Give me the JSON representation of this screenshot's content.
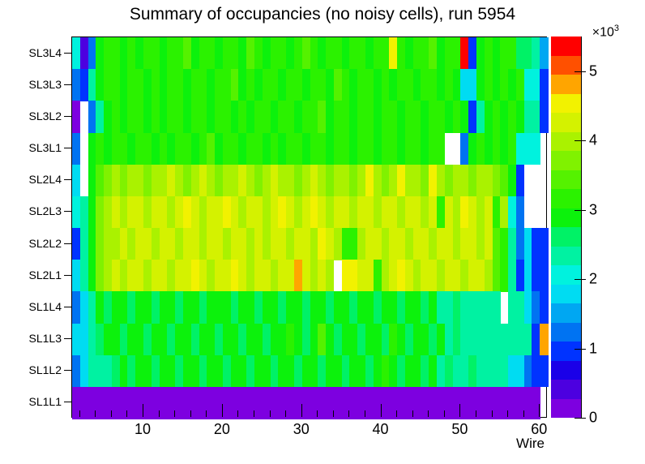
{
  "title": "Summary of occupancies (no noisy cells), run 5954",
  "x_axis": {
    "label": "Wire",
    "range": [
      1,
      61
    ],
    "major_ticks": [
      10,
      20,
      30,
      40,
      50,
      60
    ],
    "minor_tick_step": 2
  },
  "y_axis": {
    "labels_top_to_bottom": [
      "SL3L4",
      "SL3L3",
      "SL3L2",
      "SL3L1",
      "SL2L4",
      "SL2L3",
      "SL2L2",
      "SL2L1",
      "SL1L4",
      "SL1L3",
      "SL1L2",
      "SL1L1"
    ]
  },
  "color_scale": {
    "ticks": [
      0,
      1,
      2,
      3,
      4,
      5
    ],
    "exponent_label": {
      "mantissa": "×10",
      "exponent": "3"
    },
    "min_value": 0,
    "max_value": 5.5,
    "units": "×10³ hits",
    "palette_bottom_to_top": [
      "#7d00e0",
      "#4c00e0",
      "#1a00e8",
      "#0033ff",
      "#0073f2",
      "#00a7f2",
      "#00dcf2",
      "#00f2de",
      "#00f2a2",
      "#00f266",
      "#0cf20c",
      "#2bf200",
      "#55f200",
      "#80f200",
      "#aaf200",
      "#d4f200",
      "#f2f200",
      "#ffa500",
      "#ff5000",
      "#ff0000"
    ]
  },
  "chart_data": {
    "type": "heatmap",
    "title": "Summary of occupancies (no noisy cells), run 5954",
    "x_label": "Wire",
    "wires": 60,
    "value_units": "×10³",
    "zmin": 0,
    "zmax": 5.5,
    "empty_cells_rendered": "white",
    "rows_top_to_bottom": [
      {
        "label": "SL3L4",
        "values": [
          2.0,
          0.4,
          1.2,
          2.9,
          3.2,
          3.2,
          2.9,
          3.2,
          2.9,
          3.2,
          3.2,
          2.9,
          3.2,
          3.2,
          3.4,
          2.9,
          3.2,
          3.2,
          2.9,
          3.2,
          3.2,
          2.9,
          3.4,
          3.2,
          2.9,
          3.2,
          3.2,
          2.9,
          3.2,
          3.4,
          3.2,
          2.9,
          3.2,
          3.2,
          2.9,
          3.2,
          3.2,
          2.9,
          3.2,
          3.2,
          4.4,
          3.2,
          2.9,
          3.2,
          3.2,
          3.4,
          2.9,
          3.2,
          3.2,
          5.4,
          0.9,
          2.9,
          3.2,
          2.9,
          3.2,
          3.2,
          2.6,
          2.6,
          2.4,
          1.5
        ]
      },
      {
        "label": "SL3L3",
        "values": [
          1.2,
          0.9,
          2.4,
          2.9,
          3.2,
          3.2,
          2.9,
          3.2,
          3.2,
          2.9,
          3.2,
          2.9,
          3.2,
          3.2,
          2.9,
          3.2,
          3.2,
          2.9,
          3.2,
          3.2,
          3.4,
          2.9,
          3.2,
          2.9,
          3.2,
          3.2,
          2.9,
          3.2,
          3.2,
          2.9,
          3.2,
          3.2,
          2.9,
          3.4,
          3.2,
          2.9,
          3.2,
          3.2,
          2.9,
          3.2,
          2.9,
          3.2,
          3.2,
          2.9,
          3.2,
          3.2,
          2.9,
          3.2,
          2.9,
          1.8,
          1.8,
          2.9,
          3.2,
          2.9,
          3.2,
          2.9,
          3.2,
          2.0,
          2.0,
          0.9
        ]
      },
      {
        "label": "SL3L2",
        "values": [
          0.15,
          null,
          1.3,
          2.4,
          2.9,
          3.2,
          2.9,
          3.2,
          3.2,
          2.9,
          3.2,
          2.9,
          3.2,
          3.2,
          2.9,
          3.2,
          3.2,
          2.9,
          3.2,
          3.2,
          2.9,
          3.2,
          2.9,
          3.2,
          3.2,
          2.9,
          3.2,
          3.2,
          2.9,
          3.2,
          3.2,
          3.4,
          2.9,
          3.2,
          3.2,
          2.9,
          3.2,
          3.2,
          2.9,
          3.2,
          3.2,
          2.9,
          3.2,
          3.2,
          2.9,
          3.2,
          3.2,
          2.9,
          3.2,
          2.9,
          0.9,
          2.2,
          2.9,
          3.2,
          2.9,
          3.2,
          2.9,
          2.4,
          2.4,
          0.9
        ]
      },
      {
        "label": "SL3L1",
        "values": [
          1.2,
          null,
          2.9,
          3.2,
          2.9,
          3.2,
          3.2,
          2.9,
          3.2,
          3.2,
          2.9,
          3.2,
          2.9,
          3.2,
          3.2,
          2.9,
          3.2,
          3.4,
          2.9,
          3.2,
          3.2,
          2.9,
          3.2,
          3.2,
          2.9,
          3.2,
          2.9,
          3.2,
          3.2,
          2.9,
          3.2,
          3.2,
          2.9,
          3.2,
          3.2,
          2.9,
          3.2,
          3.2,
          2.9,
          3.2,
          3.2,
          2.9,
          3.2,
          3.2,
          2.9,
          3.2,
          3.2,
          null,
          null,
          1.2,
          2.9,
          3.2,
          2.9,
          3.2,
          2.9,
          3.2,
          2.0,
          2.0,
          2.0,
          null
        ]
      },
      {
        "label": "SL2L4",
        "values": [
          1.8,
          null,
          2.9,
          3.4,
          3.7,
          4.0,
          3.7,
          4.0,
          4.0,
          3.7,
          4.0,
          4.0,
          4.2,
          4.0,
          3.7,
          4.0,
          4.2,
          4.0,
          3.7,
          4.0,
          4.0,
          4.2,
          4.0,
          3.7,
          4.0,
          4.2,
          4.0,
          4.0,
          3.7,
          4.0,
          4.2,
          4.0,
          3.7,
          4.0,
          4.0,
          3.7,
          4.0,
          4.4,
          4.0,
          3.7,
          4.0,
          4.4,
          4.0,
          4.0,
          3.7,
          4.4,
          4.0,
          3.7,
          4.0,
          4.0,
          3.7,
          4.0,
          4.0,
          3.7,
          3.4,
          2.9,
          0.9,
          null,
          null,
          null
        ]
      },
      {
        "label": "SL2L3",
        "values": [
          2.1,
          2.4,
          3.0,
          3.7,
          4.0,
          4.2,
          4.0,
          4.2,
          4.2,
          4.0,
          4.2,
          4.2,
          4.0,
          4.2,
          4.4,
          4.2,
          4.0,
          4.2,
          4.2,
          4.4,
          4.2,
          4.0,
          4.2,
          4.2,
          4.0,
          4.2,
          4.4,
          4.2,
          4.0,
          4.2,
          4.4,
          4.2,
          4.0,
          4.2,
          4.2,
          4.0,
          4.2,
          4.2,
          4.0,
          4.2,
          4.2,
          4.0,
          4.2,
          4.2,
          4.0,
          4.2,
          3.2,
          4.2,
          4.0,
          4.4,
          4.2,
          4.0,
          4.2,
          3.2,
          4.0,
          2.1,
          1.3,
          null,
          null,
          null
        ]
      },
      {
        "label": "SL2L2",
        "values": [
          0.9,
          2.2,
          3.0,
          3.7,
          4.0,
          4.0,
          4.2,
          4.0,
          4.2,
          4.2,
          4.0,
          4.2,
          4.2,
          4.0,
          4.2,
          4.2,
          4.0,
          4.2,
          4.2,
          4.0,
          4.2,
          4.2,
          4.0,
          4.2,
          4.0,
          4.2,
          4.2,
          4.0,
          4.2,
          4.2,
          4.0,
          4.4,
          4.2,
          4.0,
          3.2,
          3.2,
          4.0,
          4.2,
          4.2,
          4.0,
          4.2,
          4.2,
          4.0,
          4.2,
          4.2,
          4.0,
          4.2,
          4.2,
          4.0,
          4.2,
          4.2,
          4.0,
          4.2,
          3.4,
          3.2,
          2.2,
          1.3,
          1.7,
          0.9,
          0.9
        ]
      },
      {
        "label": "SL2L1",
        "values": [
          1.7,
          2.4,
          3.0,
          3.7,
          4.0,
          4.2,
          4.0,
          4.2,
          4.2,
          4.0,
          4.2,
          4.2,
          4.0,
          4.2,
          4.2,
          4.4,
          4.2,
          4.0,
          4.2,
          4.2,
          4.4,
          4.2,
          4.0,
          4.2,
          4.2,
          4.0,
          4.2,
          4.2,
          4.7,
          4.2,
          4.0,
          4.2,
          4.0,
          null,
          4.4,
          4.4,
          4.2,
          4.2,
          3.2,
          4.0,
          4.2,
          4.4,
          4.2,
          4.0,
          4.2,
          4.2,
          4.0,
          4.2,
          4.2,
          4.0,
          4.2,
          4.2,
          4.0,
          3.4,
          3.2,
          2.4,
          0.9,
          1.7,
          0.9,
          0.9
        ]
      },
      {
        "label": "SL1L4",
        "values": [
          1.2,
          1.8,
          2.4,
          2.9,
          2.6,
          2.9,
          2.9,
          2.6,
          2.9,
          2.9,
          2.6,
          2.9,
          2.9,
          2.6,
          2.9,
          2.9,
          2.6,
          2.9,
          2.9,
          2.9,
          2.6,
          2.9,
          2.9,
          2.6,
          2.9,
          2.9,
          2.6,
          2.9,
          2.9,
          2.6,
          2.9,
          2.9,
          2.6,
          2.9,
          2.9,
          2.6,
          2.9,
          2.9,
          2.6,
          2.9,
          2.9,
          2.6,
          2.9,
          2.9,
          2.6,
          2.9,
          2.4,
          2.4,
          2.6,
          2.4,
          2.2,
          2.4,
          2.4,
          2.2,
          null,
          2.2,
          2.2,
          1.8,
          1.2,
          0.9
        ]
      },
      {
        "label": "SL1L3",
        "values": [
          1.8,
          1.8,
          2.4,
          2.6,
          2.9,
          2.9,
          2.6,
          2.9,
          2.9,
          2.6,
          2.9,
          2.9,
          2.6,
          2.9,
          2.9,
          2.6,
          2.9,
          2.9,
          2.6,
          2.9,
          2.9,
          2.6,
          2.9,
          2.9,
          2.6,
          2.9,
          2.9,
          3.2,
          2.9,
          2.6,
          2.9,
          3.4,
          2.9,
          2.6,
          2.9,
          2.9,
          2.6,
          2.9,
          2.9,
          2.6,
          3.2,
          2.9,
          2.6,
          2.9,
          2.9,
          2.6,
          2.9,
          2.4,
          2.6,
          2.4,
          2.4,
          2.2,
          2.4,
          2.4,
          2.2,
          2.4,
          2.2,
          2.2,
          0.9,
          4.8
        ]
      },
      {
        "label": "SL1L2",
        "values": [
          1.1,
          1.8,
          2.4,
          2.4,
          2.4,
          2.6,
          2.9,
          2.6,
          2.9,
          2.9,
          2.6,
          2.9,
          2.9,
          2.6,
          2.9,
          2.9,
          2.6,
          2.9,
          2.9,
          2.6,
          2.9,
          2.9,
          2.6,
          2.9,
          2.9,
          2.6,
          2.9,
          2.9,
          2.6,
          2.9,
          2.9,
          2.6,
          2.9,
          2.9,
          2.6,
          2.9,
          2.9,
          2.6,
          2.9,
          3.2,
          2.9,
          2.6,
          2.9,
          2.9,
          2.6,
          2.9,
          2.4,
          2.6,
          2.4,
          2.4,
          2.6,
          2.4,
          2.4,
          2.2,
          2.4,
          1.8,
          1.8,
          1.3,
          0.9,
          0.9
        ]
      },
      {
        "label": "SL1L1",
        "values": [
          0.15,
          0.15,
          0.15,
          0.15,
          0.15,
          0.15,
          0.15,
          0.15,
          0.15,
          0.15,
          0.15,
          0.15,
          0.15,
          0.15,
          0.15,
          0.15,
          0.15,
          0.15,
          0.15,
          0.15,
          0.15,
          0.15,
          0.15,
          0.15,
          0.15,
          0.15,
          0.15,
          0.15,
          0.15,
          0.15,
          0.15,
          0.15,
          0.15,
          0.15,
          0.15,
          0.15,
          0.15,
          0.15,
          0.15,
          0.15,
          0.15,
          0.15,
          0.15,
          0.15,
          0.15,
          0.15,
          0.15,
          0.15,
          0.15,
          0.15,
          0.15,
          0.15,
          0.15,
          0.15,
          0.15,
          0.15,
          0.15,
          0.15,
          0.15,
          null
        ]
      }
    ]
  }
}
